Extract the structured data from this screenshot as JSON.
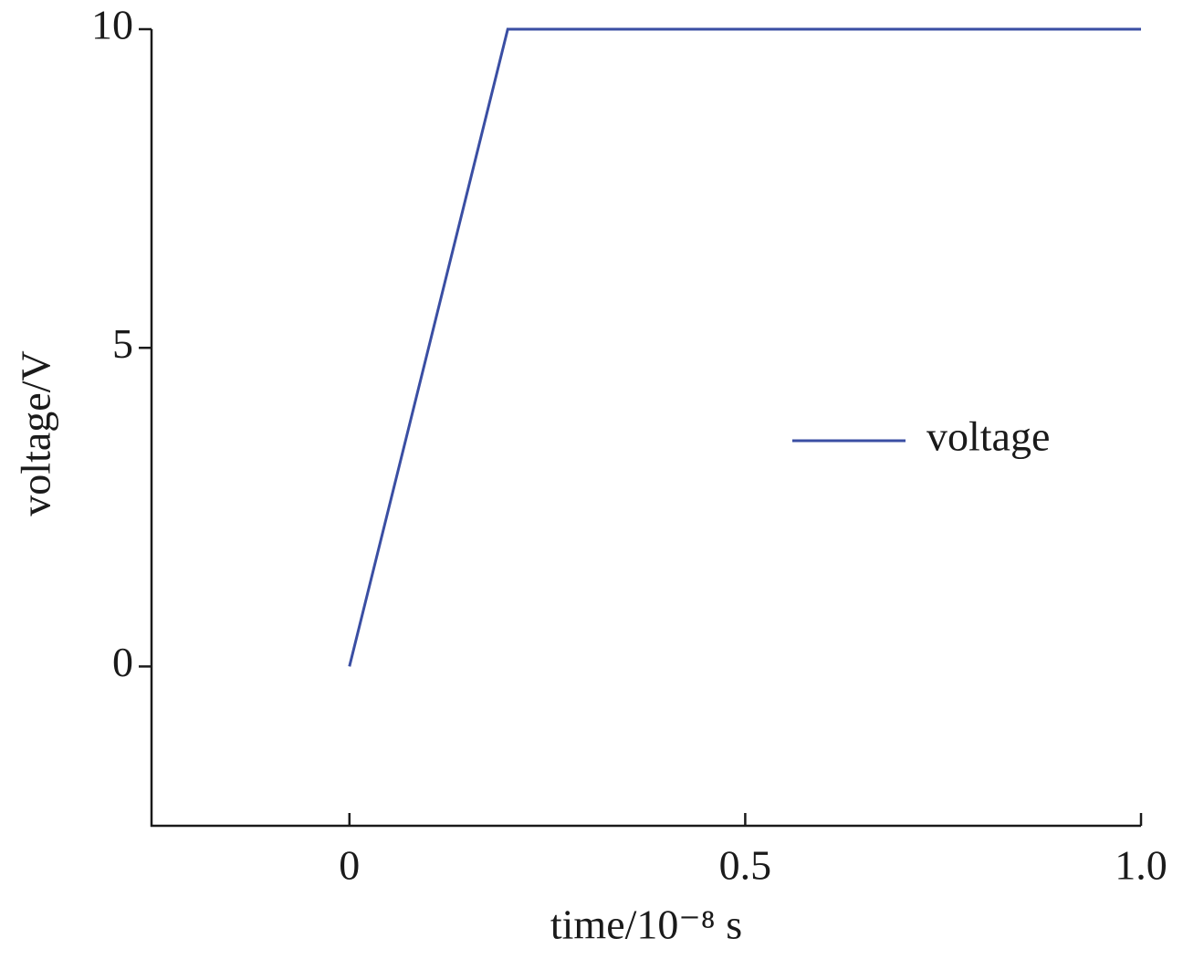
{
  "chart_data": {
    "type": "line",
    "xlabel": "time/10⁻⁸ s",
    "ylabel": "voltage/V",
    "x": [
      0,
      0.2,
      1.0
    ],
    "series": [
      {
        "name": "voltage",
        "color": "#3a4ea3",
        "values": [
          0,
          10,
          10
        ]
      }
    ],
    "xlim": [
      -0.25,
      1.0
    ],
    "xticks": [
      0,
      0.5,
      {
        "value": 1,
        "label": "1.0"
      }
    ],
    "ylim": [
      -2.5,
      10
    ],
    "yticks": [
      0,
      5,
      10
    ],
    "grid": false,
    "legend": "center right"
  }
}
